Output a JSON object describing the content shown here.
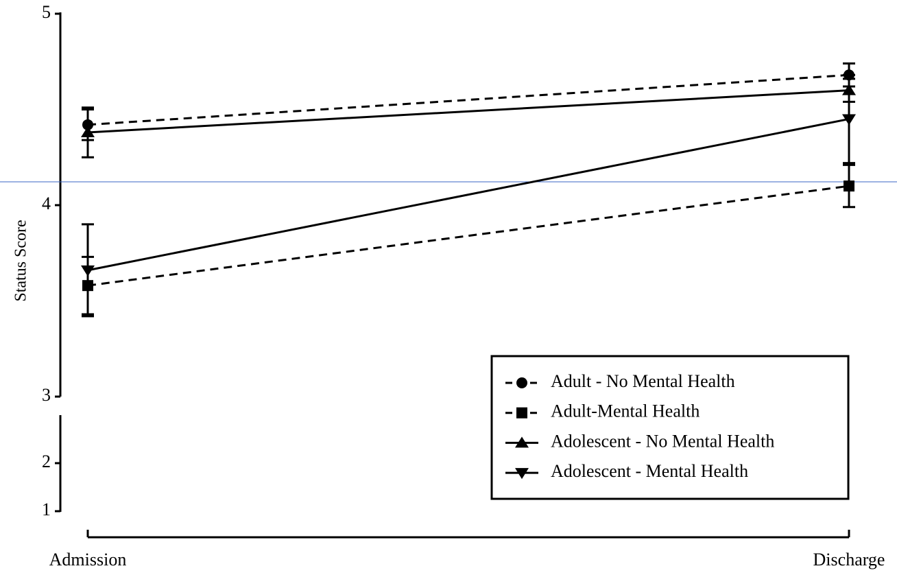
{
  "chart_data": {
    "type": "line",
    "y_label": "Status Score",
    "categories": [
      "Admission",
      "Discharge"
    ],
    "ylim": [
      1,
      5
    ],
    "y_break": 3,
    "yticks": [
      1,
      2,
      3,
      4,
      5
    ],
    "legend": "lower right",
    "series": [
      {
        "name": "Adult - No Mental Health",
        "color": "#000000",
        "dashed": true,
        "marker": "circle",
        "values": [
          4.42,
          4.68
        ],
        "errors": [
          0.08,
          0.06
        ]
      },
      {
        "name": "Adult-Mental Health",
        "color": "#000000",
        "dashed": true,
        "marker": "square",
        "values": [
          3.58,
          4.1
        ],
        "errors": [
          0.15,
          0.11
        ]
      },
      {
        "name": "Adolescent - No Mental Health",
        "color": "#000000",
        "dashed": false,
        "marker": "triangle",
        "values": [
          4.38,
          4.6
        ],
        "errors": [
          0.13,
          0.06
        ]
      },
      {
        "name": "Adolescent - Mental Health",
        "color": "#000000",
        "dashed": false,
        "marker": "triangle-down",
        "values": [
          3.66,
          4.45
        ],
        "errors": [
          0.24,
          0.23
        ]
      }
    ]
  }
}
